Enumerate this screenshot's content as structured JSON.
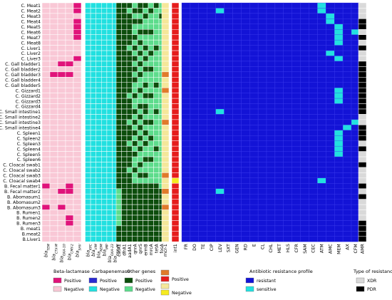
{
  "chart_data": {
    "type": "heatmap",
    "rows": [
      "C. Meat1",
      "C. Meat2",
      "C. Meat3",
      "C. Meat4",
      "C. Meat5",
      "C. Meat6",
      "C. Meat7",
      "C. Meat8",
      "C. Liver1",
      "C. Liver2",
      "C. Liver3",
      "C. Gall bladder1",
      "C. Gall bladder2",
      "C. Gall bladder3",
      "C. Gall bladder4",
      "C. Gall bladder5",
      "C. Gizzard1",
      "C. Gizzard2",
      "C. Gizzard3",
      "C. Gizzard4",
      "C. Small intestine1",
      "C. Small intestine2",
      "C. Small intestine3",
      "C. Small intestine4",
      "C. Spleen1",
      "C. Spleen2",
      "C. Spleen3",
      "C. Spleen4",
      "C. Spleen5",
      "C. Spleen6",
      "C. Cloacal swab1",
      "C. Cloacal swab2",
      "C. Cloacal swab3",
      "C. Cloacal swab4",
      "B. Fecal matter1",
      "B. Fecal matter2",
      "B. Abomasum1",
      "B. Abomasum2",
      "B. Abomasum3",
      "B. Rumen1",
      "B. Rumen2",
      "B. Rumen3",
      "B. meat1",
      "B.meat2",
      "B.Liver1"
    ],
    "groups": [
      {
        "key": "bla",
        "legend_title": "Beta-lactamase",
        "pos_label": "Positive",
        "neg_label": "Negative",
        "pos_color": "#e0137a",
        "neg_color": "#f9c8d6",
        "columns": [
          "bla_TEM",
          "bla_CTX-M",
          "bla_OXA-10",
          "bla_CMY-2",
          "bla_SHV"
        ],
        "col_display": [
          [
            "bla",
            "TEM"
          ],
          [
            "bla",
            "CTX-M"
          ],
          [
            "bla",
            "OXA-10"
          ],
          [
            "bla",
            "CMY-2"
          ],
          [
            "bla",
            "SHV"
          ]
        ],
        "positives": [
          [
            4
          ],
          [
            4
          ],
          [],
          [
            4
          ],
          [
            4
          ],
          [
            4
          ],
          [
            4
          ],
          [],
          [],
          [],
          [
            4
          ],
          [
            2,
            3
          ],
          [],
          [
            1,
            2,
            3
          ],
          [],
          [],
          [],
          [],
          [],
          [],
          [],
          [],
          [],
          [],
          [],
          [],
          [],
          [],
          [],
          [],
          [],
          [],
          [],
          [],
          [
            0,
            3
          ],
          [
            2,
            3
          ],
          [],
          [],
          [
            0,
            2
          ],
          [],
          [
            3
          ],
          [
            3
          ],
          [],
          [],
          []
        ]
      },
      {
        "key": "carb",
        "legend_title": "Carbapenemase",
        "pos_label": "Positive",
        "neg_label": "Negative",
        "pos_color": "#2a2ad0",
        "neg_color": "#22e0e0",
        "columns": [
          "bla_KPC",
          "bla_VIM",
          "bla_NDM",
          "bla_IMP",
          "bla_OXA-23",
          "bla_OXA-48"
        ],
        "col_display": [
          [
            "bla",
            "KPC"
          ],
          [
            "bla",
            "VIM"
          ],
          [
            "bla",
            "NDM"
          ],
          [
            "bla",
            "IMP"
          ],
          [
            "bla",
            "OXA-23"
          ],
          [
            "bla",
            "OXA-48"
          ]
        ],
        "positives": []
      },
      {
        "key": "other",
        "legend_title": "Other genes",
        "pos_label": "Positive",
        "neg_label": "Negative",
        "pos_color": "#0c4d0c",
        "neg_color": "#5ddc8c",
        "columns": [
          "catA1",
          "dfrA1",
          "aadA1",
          "qnrA",
          "qnrS",
          "ermB",
          "mrcA",
          "tetA",
          "fosA"
        ],
        "positives": [
          [
            0,
            1,
            2,
            4,
            5,
            7
          ],
          [
            0,
            1,
            3,
            4,
            6
          ],
          [
            0,
            1,
            2,
            5,
            8
          ],
          [
            0,
            1,
            2,
            3,
            4
          ],
          [
            0,
            1,
            2
          ],
          [
            0,
            1,
            2,
            4,
            5,
            6
          ],
          [
            0,
            1,
            2,
            3
          ],
          [
            0,
            1,
            2,
            4
          ],
          [
            0,
            1,
            3,
            5,
            7
          ],
          [
            0,
            1,
            2,
            4,
            6
          ],
          [
            0,
            1,
            2,
            3,
            5
          ],
          [
            0,
            1,
            2,
            4
          ],
          [
            0,
            1,
            2,
            3,
            5,
            6
          ],
          [
            0,
            1,
            2,
            4
          ],
          [
            0,
            1,
            2,
            3
          ],
          [
            0,
            1,
            2,
            5,
            7
          ],
          [
            0,
            1,
            2,
            4
          ],
          [
            0,
            1,
            3,
            5,
            6
          ],
          [
            0,
            1,
            2
          ],
          [
            0,
            1,
            2,
            4,
            5
          ],
          [
            0,
            1,
            2,
            3,
            5,
            7
          ],
          [
            0,
            1,
            2,
            4
          ],
          [
            0,
            1,
            3,
            5,
            6
          ],
          [
            0,
            1,
            2,
            4
          ],
          [
            0,
            1,
            2,
            3,
            5
          ],
          [
            0,
            1,
            2,
            4,
            6
          ],
          [
            0,
            1,
            3,
            5
          ],
          [
            0,
            1,
            2,
            4,
            7
          ],
          [
            0,
            1,
            2,
            3
          ],
          [
            0,
            1,
            2,
            5,
            6
          ],
          [
            0,
            1,
            2,
            4
          ],
          [
            0,
            1,
            3
          ],
          [
            0,
            1,
            2,
            4,
            5
          ],
          [
            0,
            1,
            2
          ],
          [
            0,
            1,
            2,
            3,
            4,
            5,
            6,
            7
          ],
          [
            1,
            2,
            3,
            4,
            5,
            6,
            7,
            8
          ],
          [
            1,
            2,
            3,
            4,
            5,
            6,
            7,
            8
          ],
          [
            1,
            2,
            3,
            4,
            5,
            6,
            7,
            8
          ],
          [
            1,
            2,
            3,
            4,
            5,
            6,
            7,
            8
          ],
          [
            1,
            2,
            3,
            4,
            5,
            6,
            7,
            8
          ],
          [
            1,
            2,
            3,
            4,
            5,
            6,
            7,
            8
          ],
          [
            1,
            2,
            3,
            4,
            5,
            6,
            7,
            8
          ],
          [
            0,
            1,
            2,
            3,
            4,
            5,
            6,
            7,
            8
          ],
          [
            0,
            1,
            2,
            3,
            4,
            5,
            6,
            7,
            8
          ],
          [
            0,
            1,
            2,
            3,
            4,
            5,
            6,
            7,
            8
          ]
        ]
      },
      {
        "key": "mcr",
        "legend_title": "",
        "pos_label": "Positive",
        "neg_label": "Negative",
        "pos_color": "#e07a2a",
        "neg_color": "#f5e79a",
        "columns": [
          "mcr-1"
        ],
        "positives": [
          [],
          [],
          [],
          [],
          [],
          [],
          [],
          [],
          [],
          [],
          [],
          [],
          [],
          [
            0
          ],
          [],
          [],
          [
            0
          ],
          [],
          [],
          [],
          [],
          [],
          [
            0
          ],
          [],
          [],
          [],
          [],
          [],
          [],
          [],
          [],
          [],
          [
            0
          ],
          [],
          [],
          [
            0
          ],
          [],
          [],
          [
            0
          ],
          [],
          [],
          [],
          [],
          [],
          []
        ]
      },
      {
        "key": "int",
        "legend_title": "",
        "pos_label": "Positive",
        "neg_label": "Negative",
        "pos_color": "#e51c1c",
        "neg_color": "#f5ea20",
        "columns": [
          "int1"
        ],
        "negatives": [
          33
        ]
      }
    ],
    "amr": {
      "legend_title": "Antibiotic resistance profile",
      "resistant_label": "resistant",
      "sensitive_label": "sensitive",
      "resistant_color": "#1313d6",
      "sensitive_color": "#22e0e0",
      "columns": [
        "FR",
        "DO",
        "TE",
        "CIP",
        "LEV",
        "SXT",
        "GEN",
        "RD",
        "E",
        "CL",
        "CHL",
        "MET",
        "HLS",
        "CFR",
        "SAM",
        "CEC",
        "ATM",
        "AMC",
        "MEM",
        "AX",
        "CFM"
      ],
      "sensitive": [
        [
          16
        ],
        [
          4,
          16
        ],
        [
          17
        ],
        [
          17
        ],
        [
          18
        ],
        [
          18,
          20
        ],
        [
          18
        ],
        [
          18
        ],
        [],
        [
          17
        ],
        [
          18
        ],
        [],
        [],
        [],
        [],
        [],
        [
          18
        ],
        [
          18
        ],
        [
          18
        ],
        [],
        [
          4
        ],
        [],
        [
          20
        ],
        [
          19
        ],
        [
          18
        ],
        [
          18
        ],
        [
          18
        ],
        [
          18
        ],
        [
          18
        ],
        [],
        [],
        [],
        [],
        [
          16
        ],
        [],
        [
          4
        ],
        [],
        [],
        [],
        [],
        [],
        [],
        [],
        [],
        []
      ]
    },
    "resistance_type": {
      "legend_title": "Type of resistance",
      "column": "AMR",
      "xdr_label": "XDR",
      "pdr_label": "PDR",
      "xdr_color": "#d9d9d9",
      "pdr_color": "#000000",
      "values": [
        "XDR",
        "XDR",
        "XDR",
        "PDR",
        "PDR",
        "XDR",
        "PDR",
        "XDR",
        "PDR",
        "XDR",
        "XDR",
        "PDR",
        "PDR",
        "PDR",
        "PDR",
        "PDR",
        "PDR",
        "PDR",
        "PDR",
        "PDR",
        "PDR",
        "XDR",
        "XDR",
        "PDR",
        "PDR",
        "PDR",
        "XDR",
        "PDR",
        "XDR",
        "XDR",
        "PDR",
        "XDR",
        "XDR",
        "XDR",
        "PDR",
        "XDR",
        "PDR",
        "XDR",
        "XDR",
        "XDR",
        "XDR",
        "PDR",
        "PDR",
        "PDR",
        "PDR"
      ]
    }
  }
}
